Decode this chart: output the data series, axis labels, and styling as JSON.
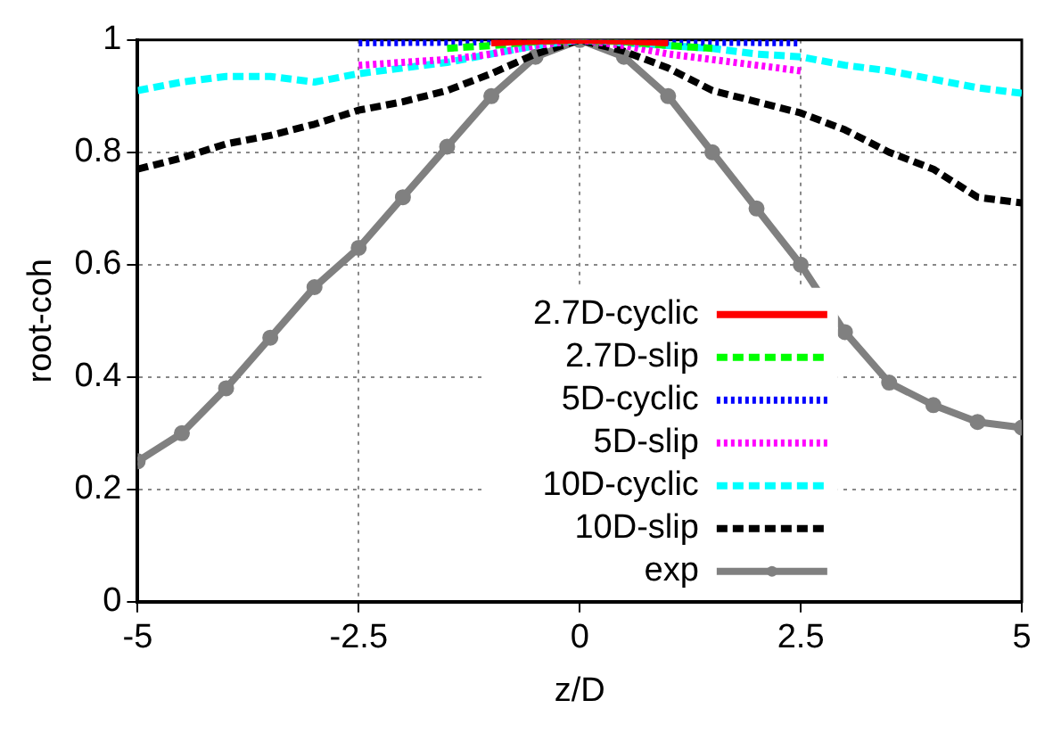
{
  "chart_data": {
    "type": "line",
    "xlabel": "z/D",
    "ylabel": "root-coh",
    "xlim": [
      -5,
      5
    ],
    "xticks": [
      -5,
      -2.5,
      0,
      2.5,
      5
    ],
    "ylim": [
      0,
      1
    ],
    "yticks": [
      0,
      0.2,
      0.4,
      0.6,
      0.8,
      1
    ],
    "grid": true,
    "legend": "bottom",
    "series": [
      {
        "name": "2.7D-cyclic",
        "color": "#ff0000",
        "line_style": "solid",
        "marker": "none",
        "x": [
          -1,
          -0.5,
          0,
          0.5,
          1
        ],
        "values": [
          0.995,
          0.998,
          1,
          0.998,
          0.995
        ]
      },
      {
        "name": "2.7D-slip",
        "color": "#00ff00",
        "line_style": "dashed",
        "marker": "none",
        "x": [
          -1.5,
          -1,
          -0.5,
          0,
          0.5,
          1,
          1.5
        ],
        "values": [
          0.985,
          0.99,
          0.997,
          1,
          0.997,
          0.99,
          0.985
        ]
      },
      {
        "name": "5D-cyclic",
        "color": "#0000ff",
        "line_style": "dotted",
        "marker": "none",
        "x": [
          -2.5,
          -1.5,
          -0.5,
          0,
          0.5,
          1.5,
          2.5
        ],
        "values": [
          0.995,
          0.996,
          0.998,
          1,
          0.998,
          0.996,
          0.995
        ]
      },
      {
        "name": "5D-slip",
        "color": "#ff00ff",
        "line_style": "dotted",
        "marker": "none",
        "x": [
          -2.5,
          -2,
          -1.5,
          -1,
          -0.5,
          0,
          0.5,
          1,
          1.5,
          2,
          2.5
        ],
        "values": [
          0.955,
          0.96,
          0.965,
          0.975,
          0.99,
          1,
          0.99,
          0.975,
          0.965,
          0.955,
          0.945
        ]
      },
      {
        "name": "10D-cyclic",
        "color": "#00ffff",
        "line_style": "dashed",
        "marker": "none",
        "x": [
          -5,
          -4.5,
          -4,
          -3.5,
          -3,
          -2.5,
          -2,
          -1.5,
          -1,
          -0.5,
          0,
          0.5,
          1,
          1.5,
          2,
          2.5,
          3,
          3.5,
          4,
          4.5,
          5
        ],
        "values": [
          0.91,
          0.925,
          0.935,
          0.935,
          0.925,
          0.94,
          0.95,
          0.96,
          0.975,
          0.99,
          1,
          0.995,
          0.99,
          0.985,
          0.975,
          0.97,
          0.955,
          0.945,
          0.93,
          0.915,
          0.905
        ]
      },
      {
        "name": "10D-slip",
        "color": "#000000",
        "line_style": "dashed",
        "marker": "none",
        "x": [
          -5,
          -4.5,
          -4,
          -3.5,
          -3,
          -2.5,
          -2,
          -1.5,
          -1,
          -0.5,
          0,
          0.5,
          1,
          1.5,
          2,
          2.5,
          3,
          3.5,
          4,
          4.5,
          5
        ],
        "values": [
          0.77,
          0.79,
          0.815,
          0.83,
          0.85,
          0.875,
          0.89,
          0.91,
          0.94,
          0.975,
          1,
          0.98,
          0.95,
          0.91,
          0.89,
          0.87,
          0.84,
          0.8,
          0.77,
          0.72,
          0.71
        ]
      },
      {
        "name": "exp",
        "color": "#808080",
        "line_style": "solid",
        "marker": "circle",
        "x": [
          -5,
          -4.5,
          -4,
          -3.5,
          -3,
          -2.5,
          -2,
          -1.5,
          -1,
          -0.5,
          0,
          0.5,
          1,
          1.5,
          2,
          2.5,
          3,
          3.5,
          4,
          4.5,
          5
        ],
        "values": [
          0.25,
          0.3,
          0.38,
          0.47,
          0.56,
          0.63,
          0.72,
          0.81,
          0.9,
          0.97,
          1,
          0.97,
          0.9,
          0.8,
          0.7,
          0.6,
          0.48,
          0.39,
          0.35,
          0.32,
          0.31
        ]
      }
    ]
  }
}
